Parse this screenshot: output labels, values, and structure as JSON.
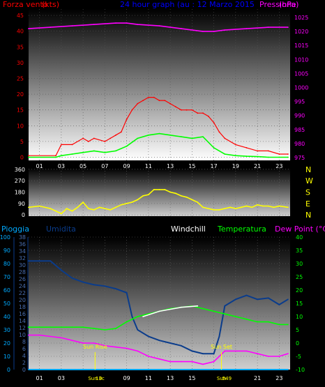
{
  "title": "24 hour graph (au : 12 Marzo 2015",
  "colors": {
    "background": "#000000",
    "wind": "#ff0000",
    "gust": "#00ff00",
    "pressure": "#ff00ff",
    "direction": "#ffff00",
    "humidity": "#0a3c8c",
    "temperature": "#00ff00",
    "dewpoint": "#ff00ff",
    "rain": "#00aaff",
    "windchill": "#ffffff",
    "sun": "#ffff00"
  },
  "chart_data": [
    {
      "type": "line",
      "title": "24 hour graph (au : 12 Marzo 2015",
      "left_label": "Forza vento",
      "right_label": "Pressione",
      "left_unit": "(kts)",
      "right_unit": "(hPa)",
      "x_ticks": [
        "01",
        "03",
        "05",
        "07",
        "09",
        "11",
        "13",
        "15",
        "17",
        "19",
        "21",
        "23"
      ],
      "y_left_ticks": [
        0,
        5,
        10,
        15,
        20,
        25,
        30,
        35,
        40,
        45
      ],
      "y_right_ticks": [
        975,
        980,
        985,
        990,
        995,
        1000,
        1005,
        1010,
        1015,
        1020,
        1025
      ],
      "ylim_left": [
        -1,
        47
      ],
      "ylim_right": [
        974,
        1028
      ],
      "xlim": [
        0,
        24
      ],
      "grid": true,
      "series": [
        {
          "name": "Forza vento",
          "color": "#ff0000",
          "hours": [
            0,
            2.5,
            3.0,
            4.0,
            5.0,
            5.5,
            6.0,
            7.0,
            7.5,
            8.0,
            8.5,
            9.0,
            9.5,
            10.0,
            10.5,
            11.0,
            11.5,
            12.0,
            12.5,
            13.0,
            13.5,
            14.0,
            14.5,
            15.0,
            15.5,
            16.0,
            16.5,
            17.0,
            17.5,
            18.0,
            19.0,
            20.0,
            21.0,
            22.0,
            23.0,
            23.8
          ],
          "values": [
            0.5,
            0.5,
            4,
            4,
            6,
            5,
            6,
            5,
            6,
            7,
            8,
            12,
            15,
            17,
            18,
            19,
            19,
            18,
            18,
            17,
            16,
            15,
            15,
            15,
            14,
            14,
            13,
            11,
            8,
            6,
            4,
            3,
            2,
            2,
            1,
            1
          ]
        },
        {
          "name": "gust",
          "color": "#00ff00",
          "hours": [
            0,
            2.5,
            3.0,
            4.0,
            5.0,
            6.0,
            7.0,
            8.0,
            9.0,
            10.0,
            11.0,
            12.0,
            13.0,
            14.0,
            15.0,
            16.0,
            17.0,
            18.0,
            19.0,
            20.0,
            21.0,
            22.0,
            23.0,
            23.8
          ],
          "values": [
            0,
            0,
            0.5,
            1,
            1.5,
            2,
            1.5,
            2,
            3.5,
            6,
            7,
            7.5,
            7,
            6.5,
            6,
            6.5,
            3,
            1,
            0.5,
            0.3,
            0.2,
            0,
            0,
            0
          ]
        },
        {
          "name": "Pressione",
          "color": "#ff00ff",
          "hours": [
            0,
            2,
            4,
            6,
            8,
            9,
            10,
            12,
            14,
            16,
            17,
            18,
            20,
            22,
            23.8
          ],
          "values": [
            1021,
            1021.5,
            1022,
            1022.5,
            1023,
            1023,
            1022.5,
            1022,
            1021,
            1020,
            1020,
            1020.5,
            1021,
            1021.5,
            1021.5
          ]
        }
      ]
    },
    {
      "type": "line",
      "title": "",
      "y_ticks": [
        0,
        90,
        180,
        270,
        360
      ],
      "ylim": [
        -10,
        370
      ],
      "compass": [
        "N",
        "W",
        "S",
        "E",
        "N"
      ],
      "xlim": [
        0,
        24
      ],
      "grid": true,
      "series": [
        {
          "name": "direction",
          "color": "#ffff00",
          "hours": [
            0,
            1,
            2,
            2.5,
            3.0,
            3.5,
            4.0,
            4.5,
            5.0,
            5.5,
            6.0,
            6.5,
            7.0,
            7.5,
            8.0,
            8.5,
            9.0,
            9.5,
            10.0,
            10.5,
            11.0,
            11.5,
            12.0,
            12.5,
            13.0,
            13.5,
            14.0,
            14.5,
            15.0,
            15.5,
            16.0,
            16.5,
            17.0,
            17.5,
            18.0,
            18.5,
            19.0,
            19.5,
            20.0,
            20.5,
            21.0,
            21.5,
            22.0,
            22.5,
            23.0,
            23.8
          ],
          "values": [
            60,
            70,
            50,
            30,
            10,
            50,
            30,
            60,
            100,
            50,
            40,
            60,
            50,
            40,
            60,
            80,
            90,
            100,
            120,
            150,
            160,
            200,
            200,
            200,
            180,
            170,
            150,
            140,
            120,
            100,
            60,
            50,
            40,
            40,
            50,
            60,
            50,
            60,
            70,
            60,
            80,
            70,
            70,
            60,
            70,
            60
          ]
        }
      ]
    },
    {
      "type": "line",
      "title": "",
      "labels": {
        "rain": "Pioggia",
        "humidity": "Umidita",
        "windchill": "Windchill",
        "temperature": "Temperatura",
        "dewpoint": "Dew Point (°C)"
      },
      "x_ticks": [
        "01",
        "03",
        "05",
        "07",
        "09",
        "11",
        "13",
        "15",
        "17",
        "19",
        "21",
        "23"
      ],
      "y_left_outer_ticks": [
        0,
        10,
        20,
        30,
        40,
        50,
        60,
        70,
        80,
        90,
        100
      ],
      "y_left_inner_ticks": [
        0,
        2,
        4,
        6,
        8,
        10,
        12,
        14,
        16,
        18,
        20,
        22,
        24,
        26,
        28,
        30,
        32,
        34,
        36,
        38
      ],
      "y_right_ticks": [
        -10,
        -5,
        0,
        5,
        10,
        15,
        20,
        25,
        30,
        35,
        40
      ],
      "ylim_outer": [
        0,
        100
      ],
      "ylim_inner": [
        0,
        38
      ],
      "ylim_right": [
        -10,
        40
      ],
      "xlim": [
        0,
        24
      ],
      "annotations": [
        {
          "text": "Sun Rise",
          "hour": 6.1
        },
        {
          "text": "Sun Set",
          "hour": 17.7
        }
      ],
      "x_marker_labels": [
        {
          "hour": 6.1,
          "text": "Sun 0"
        },
        {
          "hour": 6.55,
          "text": "13c"
        },
        {
          "hour": 17.7,
          "text": "Sun"
        },
        {
          "hour": 18.2,
          "text": "549"
        }
      ],
      "series": [
        {
          "name": "Umidita",
          "color": "#0a3c8c",
          "axis": "outer",
          "hours": [
            0,
            1,
            2,
            3,
            4,
            5,
            6,
            7,
            8,
            9,
            9.5,
            10,
            11,
            12,
            13,
            14,
            15,
            16,
            17,
            17.5,
            18,
            19,
            20,
            21,
            22,
            23,
            23.8
          ],
          "values": [
            82,
            82,
            82,
            75,
            69,
            66,
            64,
            63,
            61,
            58,
            40,
            30,
            25,
            22,
            20,
            18,
            14,
            12,
            12,
            25,
            48,
            53,
            56,
            53,
            54,
            49,
            53
          ]
        },
        {
          "name": "Temperatura",
          "color": "#00ff00",
          "axis": "right",
          "hours": [
            0,
            1,
            2,
            3,
            4,
            5,
            6,
            7,
            8,
            9,
            10,
            11,
            12,
            13,
            14,
            15,
            16,
            17,
            18,
            19,
            20,
            21,
            22,
            23,
            23.8
          ],
          "values": [
            6,
            6,
            6,
            6,
            6,
            6,
            5.5,
            5,
            5.5,
            8,
            10,
            11,
            12,
            13,
            13.5,
            14,
            13,
            12,
            11,
            10,
            9,
            8,
            8,
            7,
            7
          ]
        },
        {
          "name": "Dew Point (°C)",
          "color": "#ff00ff",
          "axis": "right",
          "hours": [
            0,
            1,
            2,
            3,
            4,
            5,
            6,
            7,
            8,
            9,
            10,
            11,
            12,
            13,
            14,
            15,
            16,
            17,
            18,
            19,
            20,
            21,
            22,
            23,
            23.8
          ],
          "values": [
            3,
            3,
            2.5,
            2,
            1,
            0,
            0,
            -1,
            -1.5,
            -2,
            -3,
            -5,
            -6,
            -7,
            -7,
            -7,
            -8,
            -7,
            -3,
            -3,
            -3,
            -4,
            -5,
            -5,
            -4
          ]
        },
        {
          "name": "Windchill",
          "color": "#ffffff",
          "axis": "right",
          "hours": [
            10.5,
            12,
            14,
            15.5
          ],
          "values": [
            10,
            12,
            13.5,
            14
          ]
        },
        {
          "name": "Pioggia",
          "color": "#00aaff",
          "axis": "outer",
          "hours": [
            0,
            23.8
          ],
          "values": [
            0,
            0
          ]
        }
      ]
    }
  ]
}
